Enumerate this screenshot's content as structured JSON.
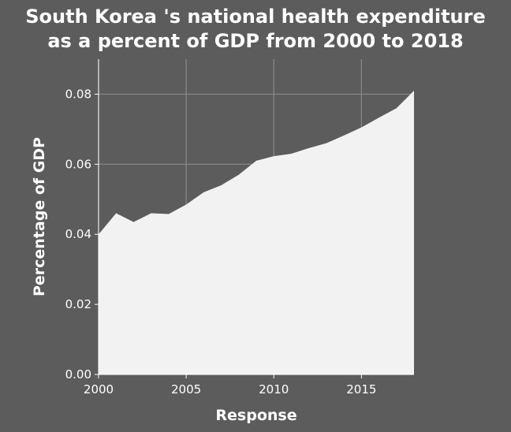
{
  "chart_data": {
    "type": "area",
    "title_lines": [
      "South Korea 's national health expenditure",
      "as a percent of GDP from 2000 to 2018"
    ],
    "xlabel": "Response",
    "ylabel": "Percentage of GDP",
    "xlim": [
      2000,
      2018
    ],
    "ylim": [
      0,
      0.09
    ],
    "x_ticks": [
      2000,
      2005,
      2010,
      2015
    ],
    "y_ticks": [
      0.0,
      0.02,
      0.04,
      0.06,
      0.08
    ],
    "y_tick_labels": [
      "0.00",
      "0.02",
      "0.04",
      "0.06",
      "0.08"
    ],
    "grid": true,
    "colors": {
      "fill": "#f2f2f2",
      "background": "#5c5c5c",
      "plot_bg": "#5c5c5c",
      "grid": "#8a8a8a",
      "text": "#ffffff"
    },
    "x": [
      2000,
      2001,
      2002,
      2003,
      2004,
      2005,
      2006,
      2007,
      2008,
      2009,
      2010,
      2011,
      2012,
      2013,
      2014,
      2015,
      2016,
      2017,
      2018
    ],
    "values": [
      0.04,
      0.046,
      0.0435,
      0.046,
      0.0458,
      0.0485,
      0.052,
      0.054,
      0.057,
      0.061,
      0.0623,
      0.063,
      0.0646,
      0.066,
      0.0682,
      0.0705,
      0.0733,
      0.076,
      0.081
    ]
  }
}
